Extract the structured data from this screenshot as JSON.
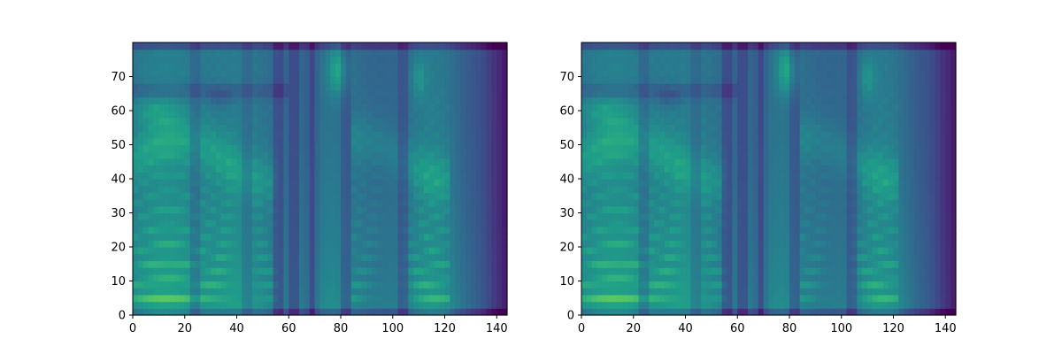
{
  "colormap": "viridis",
  "chart_data": [
    {
      "type": "heatmap",
      "xlim": [
        0,
        144
      ],
      "ylim": [
        0,
        80
      ],
      "xticks": [
        0,
        20,
        40,
        60,
        80,
        100,
        120,
        140
      ],
      "yticks": [
        0,
        10,
        20,
        30,
        40,
        50,
        60,
        70
      ],
      "xtick_labels": [
        "0",
        "20",
        "40",
        "60",
        "80",
        "100",
        "120",
        "140"
      ],
      "ytick_labels": [
        "0",
        "10",
        "20",
        "30",
        "40",
        "50",
        "60",
        "70"
      ],
      "grid": false,
      "title": "",
      "xlabel": "",
      "ylabel": ""
    },
    {
      "type": "heatmap",
      "xlim": [
        0,
        144
      ],
      "ylim": [
        0,
        80
      ],
      "xticks": [
        0,
        20,
        40,
        60,
        80,
        100,
        120,
        140
      ],
      "yticks": [
        0,
        10,
        20,
        30,
        40,
        50,
        60,
        70
      ],
      "xtick_labels": [
        "0",
        "20",
        "40",
        "60",
        "80",
        "100",
        "120",
        "140"
      ],
      "ytick_labels": [
        "0",
        "10",
        "20",
        "30",
        "40",
        "50",
        "60",
        "70"
      ],
      "grid": false,
      "title": "",
      "xlabel": "",
      "ylabel": ""
    }
  ]
}
